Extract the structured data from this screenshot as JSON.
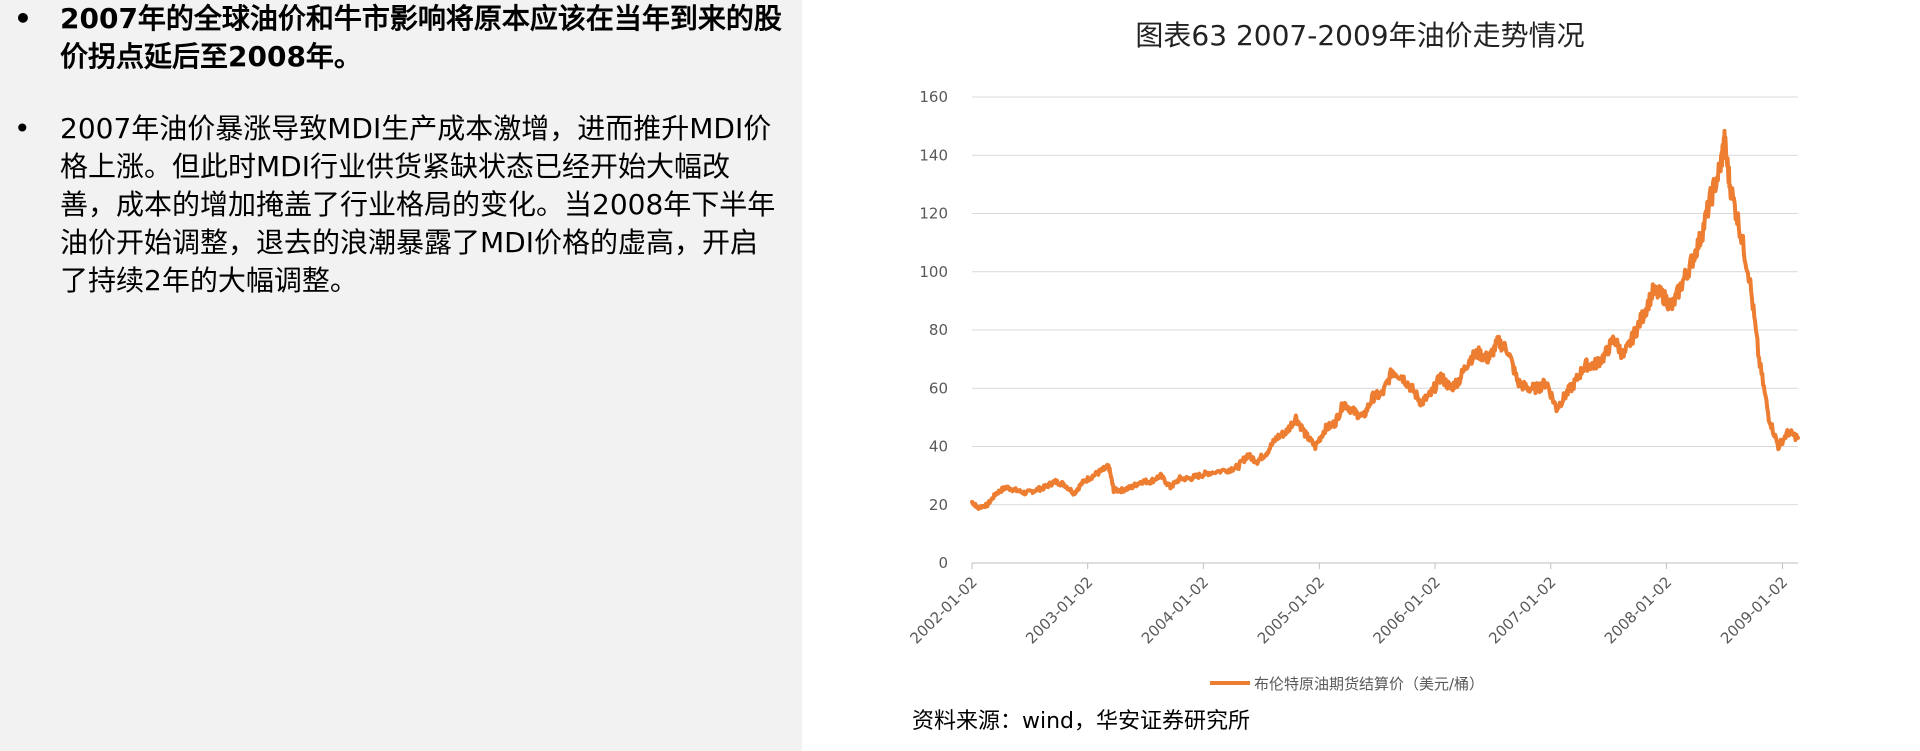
{
  "bullets": [
    {
      "text": "2007年的全球油价和牛市影响将原本应该在当年到来的股价拐点延后至2008年。",
      "bold": true
    },
    {
      "text": "2007年油价暴涨导致MDI生产成本激增，进而推升MDI价格上涨。但此时MDI行业供货紧缺状态已经开始大幅改善，成本的增加掩盖了行业格局的变化。当2008年下半年油价开始调整，退去的浪潮暴露了MDI价格的虚高，开启了持续2年的大幅调整。",
      "bold": false
    }
  ],
  "bullet_symbol": "•",
  "source": "资料来源：wind，华安证券研究所",
  "colors": {
    "series": "#ED7D31",
    "grid": "#d9d9d9",
    "axis_text": "#595959"
  },
  "chart_data": {
    "type": "line",
    "title": "图表63 2007-2009年油价走势情况",
    "xlabel": "",
    "ylabel": "",
    "ylim": [
      0,
      160
    ],
    "yticks": [
      "0",
      "20",
      "40",
      "60",
      "80",
      "100",
      "120",
      "140",
      "160"
    ],
    "xticks": [
      "2002-01-02",
      "2003-01-02",
      "2004-01-02",
      "2005-01-02",
      "2006-01-02",
      "2007-01-02",
      "2008-01-02",
      "2009-01-02"
    ],
    "xlim": [
      "2002-01-02",
      "2009-02-20"
    ],
    "grid": true,
    "legend_position": "bottom",
    "series": [
      {
        "name": "布伦特原油期货结算价（美元/桶）",
        "points": [
          [
            "2002-01-02",
            21
          ],
          [
            "2002-01-20",
            19
          ],
          [
            "2002-02-20",
            20
          ],
          [
            "2002-03-20",
            24
          ],
          [
            "2002-04-20",
            26
          ],
          [
            "2002-05-20",
            25
          ],
          [
            "2002-06-20",
            24
          ],
          [
            "2002-07-20",
            25
          ],
          [
            "2002-08-20",
            26
          ],
          [
            "2002-09-20",
            28
          ],
          [
            "2002-10-20",
            27
          ],
          [
            "2002-11-20",
            24
          ],
          [
            "2002-12-20",
            28
          ],
          [
            "2003-01-20",
            30
          ],
          [
            "2003-02-20",
            32
          ],
          [
            "2003-03-10",
            33
          ],
          [
            "2003-03-25",
            25
          ],
          [
            "2003-04-20",
            25
          ],
          [
            "2003-05-20",
            26
          ],
          [
            "2003-06-20",
            28
          ],
          [
            "2003-07-20",
            28
          ],
          [
            "2003-08-20",
            30
          ],
          [
            "2003-09-20",
            26
          ],
          [
            "2003-10-20",
            29
          ],
          [
            "2003-11-20",
            29
          ],
          [
            "2003-12-20",
            30
          ],
          [
            "2004-01-20",
            31
          ],
          [
            "2004-03-20",
            32
          ],
          [
            "2004-04-20",
            33
          ],
          [
            "2004-05-20",
            37
          ],
          [
            "2004-06-20",
            35
          ],
          [
            "2004-07-20",
            38
          ],
          [
            "2004-08-20",
            43
          ],
          [
            "2004-09-20",
            45
          ],
          [
            "2004-10-20",
            50
          ],
          [
            "2004-11-20",
            44
          ],
          [
            "2004-12-20",
            40
          ],
          [
            "2005-01-20",
            46
          ],
          [
            "2005-02-20",
            48
          ],
          [
            "2005-03-20",
            55
          ],
          [
            "2005-04-20",
            52
          ],
          [
            "2005-05-20",
            50
          ],
          [
            "2005-06-20",
            57
          ],
          [
            "2005-07-20",
            58
          ],
          [
            "2005-08-20",
            66
          ],
          [
            "2005-09-20",
            64
          ],
          [
            "2005-10-20",
            60
          ],
          [
            "2005-11-20",
            55
          ],
          [
            "2005-12-20",
            58
          ],
          [
            "2006-01-20",
            64
          ],
          [
            "2006-02-20",
            60
          ],
          [
            "2006-03-20",
            63
          ],
          [
            "2006-04-20",
            70
          ],
          [
            "2006-05-20",
            72
          ],
          [
            "2006-06-20",
            70
          ],
          [
            "2006-07-20",
            76
          ],
          [
            "2006-08-20",
            73
          ],
          [
            "2006-09-20",
            62
          ],
          [
            "2006-10-20",
            60
          ],
          [
            "2006-11-20",
            60
          ],
          [
            "2006-12-20",
            62
          ],
          [
            "2007-01-20",
            53
          ],
          [
            "2007-02-20",
            58
          ],
          [
            "2007-03-20",
            62
          ],
          [
            "2007-04-20",
            68
          ],
          [
            "2007-05-20",
            68
          ],
          [
            "2007-06-20",
            71
          ],
          [
            "2007-07-20",
            77
          ],
          [
            "2007-08-20",
            71
          ],
          [
            "2007-09-20",
            78
          ],
          [
            "2007-10-20",
            85
          ],
          [
            "2007-11-20",
            93
          ],
          [
            "2007-12-20",
            92
          ],
          [
            "2008-01-20",
            88
          ],
          [
            "2008-02-20",
            96
          ],
          [
            "2008-03-20",
            103
          ],
          [
            "2008-04-20",
            112
          ],
          [
            "2008-05-20",
            125
          ],
          [
            "2008-06-20",
            136
          ],
          [
            "2008-07-03",
            145
          ],
          [
            "2008-07-20",
            130
          ],
          [
            "2008-08-20",
            115
          ],
          [
            "2008-09-20",
            98
          ],
          [
            "2008-10-20",
            70
          ],
          [
            "2008-11-20",
            50
          ],
          [
            "2008-12-20",
            40
          ],
          [
            "2009-01-20",
            45
          ],
          [
            "2009-02-20",
            43
          ]
        ]
      }
    ]
  }
}
